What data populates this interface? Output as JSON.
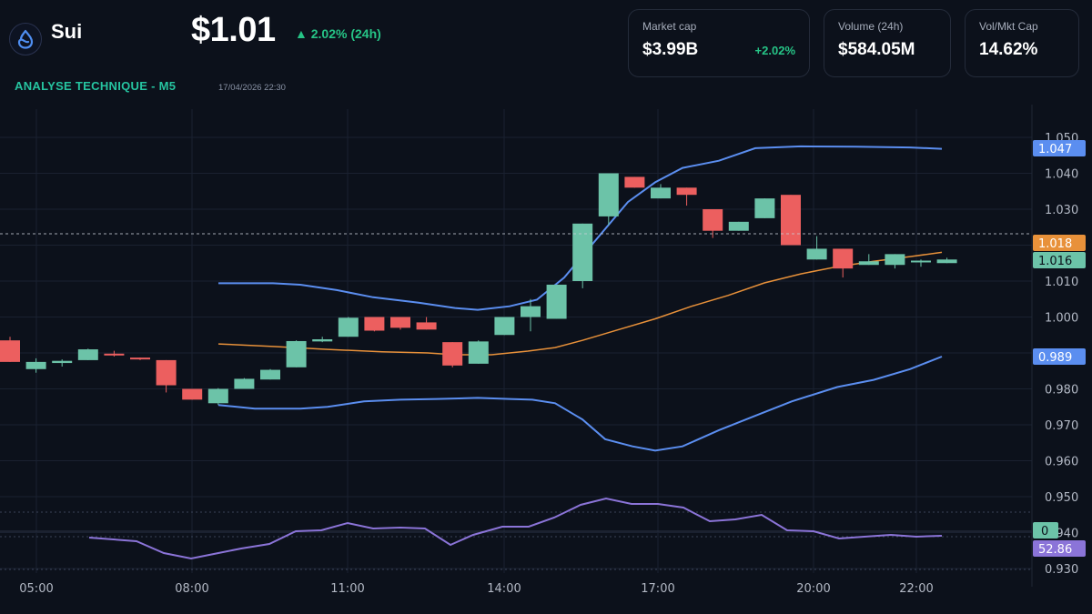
{
  "header": {
    "coin_name": "Sui",
    "price": "$1.01",
    "change": "▲ 2.02% (24h)",
    "section_title": "ANALYSE TECHNIQUE - M5",
    "timestamp": "17/04/2026 22:30",
    "logo_icon": "sui-droplet-icon"
  },
  "cards": [
    {
      "label": "Market cap",
      "value": "$3.99B",
      "delta": "+2.02%"
    },
    {
      "label": "Volume (24h)",
      "value": "$584.05M"
    },
    {
      "label": "Vol/Mkt Cap",
      "value": "14.62%"
    }
  ],
  "colors": {
    "background": "#0c111b",
    "up": "#6cc3a8",
    "down": "#ec5f5f",
    "bollinger": "#5b8ef0",
    "sma": "#e8913a",
    "rsi": "#8b74d8",
    "accent_green": "#26c486"
  },
  "chart_data": {
    "type": "candlestick",
    "title": "ANALYSE TECHNIQUE - M5",
    "x_ticks": [
      "05:00",
      "08:00",
      "11:00",
      "14:00",
      "17:00",
      "20:00",
      "22:00"
    ],
    "y_ticks": [
      "1.050",
      "1.040",
      "1.030",
      "1.020",
      "1.010",
      "1.000",
      "0.990",
      "0.980",
      "0.970",
      "0.960",
      "0.950",
      "0.940",
      "0.930"
    ],
    "ylim": [
      0.925,
      1.058
    ],
    "price_tags": [
      {
        "label": "upper-band",
        "value": "1.047",
        "color": "#5b8ef0"
      },
      {
        "label": "sma",
        "value": "1.018",
        "color": "#e8913a"
      },
      {
        "label": "last-price",
        "value": "1.016",
        "color": "#6cc3a8"
      },
      {
        "label": "lower-band",
        "value": "0.989",
        "color": "#5b8ef0"
      },
      {
        "label": "rsi-zero",
        "value": "0",
        "color": "#6cc3a8"
      },
      {
        "label": "rsi",
        "value": "52.86",
        "color": "#8b74d8"
      }
    ],
    "candles": [
      {
        "o": 0.9935,
        "h": 0.9945,
        "l": 0.9875,
        "c": 0.9875
      },
      {
        "o": 0.9855,
        "h": 0.9885,
        "l": 0.9845,
        "c": 0.9875
      },
      {
        "o": 0.9872,
        "h": 0.9882,
        "l": 0.9862,
        "c": 0.9878
      },
      {
        "o": 0.988,
        "h": 0.9912,
        "l": 0.988,
        "c": 0.991
      },
      {
        "o": 0.9898,
        "h": 0.9906,
        "l": 0.989,
        "c": 0.9894
      },
      {
        "o": 0.9887,
        "h": 0.9887,
        "l": 0.988,
        "c": 0.9883
      },
      {
        "o": 0.988,
        "h": 0.988,
        "l": 0.979,
        "c": 0.981
      },
      {
        "o": 0.98,
        "h": 0.98,
        "l": 0.977,
        "c": 0.977
      },
      {
        "o": 0.976,
        "h": 0.9802,
        "l": 0.9755,
        "c": 0.98
      },
      {
        "o": 0.98,
        "h": 0.983,
        "l": 0.98,
        "c": 0.9828
      },
      {
        "o": 0.9826,
        "h": 0.9855,
        "l": 0.9826,
        "c": 0.9853
      },
      {
        "o": 0.986,
        "h": 0.9935,
        "l": 0.986,
        "c": 0.9933
      },
      {
        "o": 0.9932,
        "h": 0.9945,
        "l": 0.993,
        "c": 0.9938
      },
      {
        "o": 0.9945,
        "h": 1.0,
        "l": 0.9945,
        "c": 0.9998
      },
      {
        "o": 1.0,
        "h": 1.0,
        "l": 0.996,
        "c": 0.9962
      },
      {
        "o": 1.0,
        "h": 1.0,
        "l": 0.9965,
        "c": 0.997
      },
      {
        "o": 0.9985,
        "h": 1.0,
        "l": 0.9965,
        "c": 0.9965
      },
      {
        "o": 0.993,
        "h": 0.993,
        "l": 0.986,
        "c": 0.9865
      },
      {
        "o": 0.987,
        "h": 0.9935,
        "l": 0.987,
        "c": 0.9932
      },
      {
        "o": 0.995,
        "h": 1.0,
        "l": 0.995,
        "c": 1.0
      },
      {
        "o": 1.0,
        "h": 1.005,
        "l": 0.996,
        "c": 1.003
      },
      {
        "o": 0.9995,
        "h": 1.009,
        "l": 0.9995,
        "c": 1.009
      },
      {
        "o": 1.01,
        "h": 1.026,
        "l": 1.008,
        "c": 1.026
      },
      {
        "o": 1.028,
        "h": 1.04,
        "l": 1.0255,
        "c": 1.04
      },
      {
        "o": 1.039,
        "h": 1.039,
        "l": 1.036,
        "c": 1.036
      },
      {
        "o": 1.033,
        "h": 1.037,
        "l": 1.033,
        "c": 1.036
      },
      {
        "o": 1.036,
        "h": 1.036,
        "l": 1.031,
        "c": 1.034
      },
      {
        "o": 1.03,
        "h": 1.03,
        "l": 1.022,
        "c": 1.024
      },
      {
        "o": 1.024,
        "h": 1.0265,
        "l": 1.024,
        "c": 1.0265
      },
      {
        "o": 1.0275,
        "h": 1.033,
        "l": 1.0275,
        "c": 1.033
      },
      {
        "o": 1.034,
        "h": 1.034,
        "l": 1.02,
        "c": 1.02
      },
      {
        "o": 1.016,
        "h": 1.0225,
        "l": 1.016,
        "c": 1.019
      },
      {
        "o": 1.019,
        "h": 1.019,
        "l": 1.011,
        "c": 1.0135
      },
      {
        "o": 1.0145,
        "h": 1.0175,
        "l": 1.0145,
        "c": 1.0155
      },
      {
        "o": 1.0145,
        "h": 1.0175,
        "l": 1.0135,
        "c": 1.0175
      },
      {
        "o": 1.0155,
        "h": 1.016,
        "l": 1.014,
        "c": 1.0157
      },
      {
        "o": 1.015,
        "h": 1.0165,
        "l": 1.015,
        "c": 1.016
      }
    ],
    "bollinger_upper": [
      [
        240,
        1.0094
      ],
      [
        300,
        1.0094
      ],
      [
        330,
        1.009
      ],
      [
        370,
        1.0075
      ],
      [
        410,
        1.0055
      ],
      [
        460,
        1.004
      ],
      [
        500,
        1.0025
      ],
      [
        525,
        1.002
      ],
      [
        560,
        1.003
      ],
      [
        590,
        1.0048
      ],
      [
        620,
        1.011
      ],
      [
        650,
        1.02
      ],
      [
        690,
        1.032
      ],
      [
        720,
        1.0375
      ],
      [
        750,
        1.0415
      ],
      [
        790,
        1.0435
      ],
      [
        830,
        1.047
      ],
      [
        880,
        1.0475
      ],
      [
        940,
        1.0474
      ],
      [
        1000,
        1.0472
      ],
      [
        1035,
        1.0468
      ]
    ],
    "bollinger_lower": [
      [
        240,
        0.9755
      ],
      [
        280,
        0.9745
      ],
      [
        330,
        0.9745
      ],
      [
        360,
        0.975
      ],
      [
        400,
        0.9765
      ],
      [
        440,
        0.977
      ],
      [
        480,
        0.9772
      ],
      [
        525,
        0.9775
      ],
      [
        560,
        0.9772
      ],
      [
        585,
        0.977
      ],
      [
        610,
        0.976
      ],
      [
        640,
        0.9715
      ],
      [
        665,
        0.966
      ],
      [
        695,
        0.964
      ],
      [
        720,
        0.9628
      ],
      [
        750,
        0.964
      ],
      [
        790,
        0.9685
      ],
      [
        830,
        0.9725
      ],
      [
        870,
        0.9765
      ],
      [
        920,
        0.9805
      ],
      [
        960,
        0.9825
      ],
      [
        1000,
        0.9855
      ],
      [
        1035,
        0.989
      ]
    ],
    "sma": [
      [
        240,
        0.9925
      ],
      [
        300,
        0.9918
      ],
      [
        360,
        0.991
      ],
      [
        420,
        0.9903
      ],
      [
        470,
        0.99
      ],
      [
        500,
        0.9895
      ],
      [
        540,
        0.9895
      ],
      [
        580,
        0.9905
      ],
      [
        610,
        0.9915
      ],
      [
        640,
        0.9935
      ],
      [
        680,
        0.9965
      ],
      [
        720,
        0.9995
      ],
      [
        760,
        1.003
      ],
      [
        800,
        1.006
      ],
      [
        840,
        1.0095
      ],
      [
        880,
        1.012
      ],
      [
        920,
        1.014
      ],
      [
        960,
        1.0155
      ],
      [
        1000,
        1.0168
      ],
      [
        1035,
        1.018
      ]
    ],
    "rsi_line": [
      [
        98,
        591
      ],
      [
        150,
        595
      ],
      [
        180,
        608
      ],
      [
        210,
        614
      ],
      [
        240,
        608
      ],
      [
        265,
        603
      ],
      [
        296,
        598
      ],
      [
        325,
        584
      ],
      [
        353,
        583
      ],
      [
        382,
        575
      ],
      [
        410,
        581
      ],
      [
        440,
        580
      ],
      [
        467,
        581
      ],
      [
        495,
        599
      ],
      [
        520,
        588
      ],
      [
        552,
        579
      ],
      [
        581,
        579
      ],
      [
        609,
        569
      ],
      [
        638,
        555
      ],
      [
        666,
        548
      ],
      [
        694,
        554
      ],
      [
        723,
        554
      ],
      [
        751,
        558
      ],
      [
        780,
        573
      ],
      [
        808,
        571
      ],
      [
        837,
        566
      ],
      [
        865,
        583
      ],
      [
        894,
        584
      ],
      [
        922,
        592
      ],
      [
        950,
        590
      ],
      [
        979,
        588
      ],
      [
        1007,
        590
      ],
      [
        1035,
        589
      ]
    ],
    "rsi_levels_y": [
      563,
      590,
      626
    ],
    "rsi_mid_y": 584,
    "last_price": 1.016
  }
}
